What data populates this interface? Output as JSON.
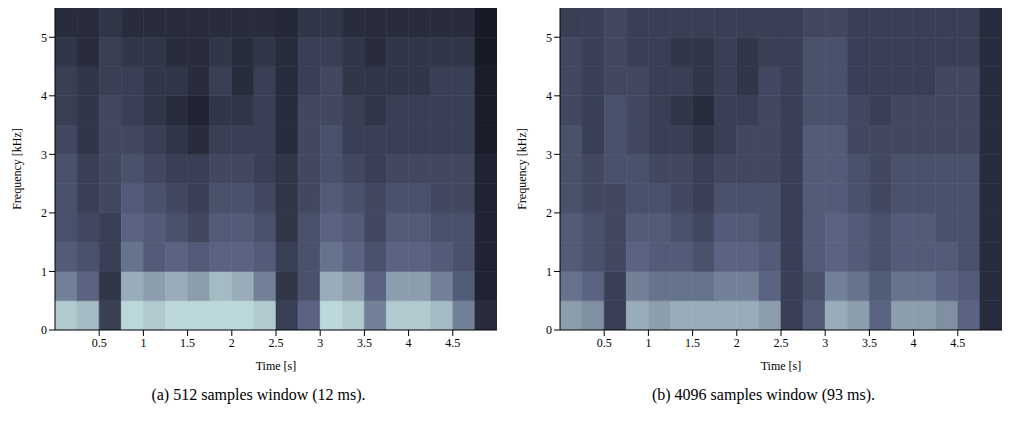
{
  "chart_data": [
    {
      "type": "heatmap",
      "caption": "(a) 512 samples window (12 ms).",
      "x_label": "Time [s]",
      "y_label": "Frequency [kHz]",
      "xlim": [
        0,
        5
      ],
      "xticks": [
        0.5,
        1,
        1.5,
        2,
        2.5,
        3,
        3.5,
        4,
        4.5
      ],
      "ylim": [
        0,
        5.5
      ],
      "yticks": [
        0,
        1,
        2,
        3,
        4,
        5
      ],
      "x_bins": [
        0,
        0.25,
        0.5,
        0.75,
        1,
        1.25,
        1.5,
        1.75,
        2,
        2.25,
        2.5,
        2.75,
        3,
        3.25,
        3.5,
        3.75,
        4,
        4.25,
        4.5,
        4.75,
        5
      ],
      "y_bins": [
        0,
        0.5,
        1,
        1.5,
        2,
        2.5,
        3,
        3.5,
        4,
        4.5,
        5,
        5.5
      ],
      "zlim": [
        0,
        1
      ],
      "colors": [
        "#07070f",
        "#5a6482",
        "#d6f5f0"
      ],
      "z": [
        [
          0.85,
          0.8,
          0.3,
          0.9,
          0.85,
          0.9,
          0.9,
          0.9,
          0.9,
          0.85,
          0.3,
          0.5,
          0.9,
          0.85,
          0.6,
          0.85,
          0.85,
          0.8,
          0.6,
          0.2
        ],
        [
          0.6,
          0.5,
          0.25,
          0.75,
          0.7,
          0.75,
          0.7,
          0.8,
          0.75,
          0.6,
          0.25,
          0.4,
          0.75,
          0.7,
          0.5,
          0.7,
          0.7,
          0.6,
          0.45,
          0.15
        ],
        [
          0.45,
          0.4,
          0.3,
          0.55,
          0.45,
          0.5,
          0.45,
          0.5,
          0.5,
          0.45,
          0.3,
          0.4,
          0.55,
          0.5,
          0.4,
          0.5,
          0.5,
          0.45,
          0.4,
          0.15
        ],
        [
          0.4,
          0.35,
          0.3,
          0.5,
          0.45,
          0.4,
          0.35,
          0.45,
          0.45,
          0.4,
          0.25,
          0.4,
          0.5,
          0.45,
          0.35,
          0.45,
          0.45,
          0.4,
          0.4,
          0.15
        ],
        [
          0.4,
          0.3,
          0.35,
          0.45,
          0.4,
          0.35,
          0.3,
          0.4,
          0.4,
          0.35,
          0.25,
          0.35,
          0.45,
          0.4,
          0.35,
          0.4,
          0.4,
          0.35,
          0.35,
          0.15
        ],
        [
          0.4,
          0.3,
          0.35,
          0.4,
          0.35,
          0.3,
          0.3,
          0.35,
          0.35,
          0.3,
          0.25,
          0.35,
          0.4,
          0.35,
          0.3,
          0.35,
          0.35,
          0.35,
          0.35,
          0.15
        ],
        [
          0.35,
          0.25,
          0.35,
          0.35,
          0.3,
          0.25,
          0.2,
          0.3,
          0.3,
          0.3,
          0.2,
          0.35,
          0.4,
          0.3,
          0.3,
          0.3,
          0.3,
          0.3,
          0.3,
          0.12
        ],
        [
          0.3,
          0.25,
          0.35,
          0.3,
          0.25,
          0.2,
          0.15,
          0.25,
          0.25,
          0.3,
          0.2,
          0.35,
          0.35,
          0.3,
          0.25,
          0.3,
          0.3,
          0.3,
          0.3,
          0.12
        ],
        [
          0.3,
          0.25,
          0.3,
          0.3,
          0.25,
          0.25,
          0.2,
          0.3,
          0.2,
          0.3,
          0.2,
          0.3,
          0.35,
          0.25,
          0.25,
          0.25,
          0.25,
          0.3,
          0.3,
          0.12
        ],
        [
          0.25,
          0.2,
          0.3,
          0.25,
          0.25,
          0.2,
          0.2,
          0.25,
          0.2,
          0.25,
          0.2,
          0.3,
          0.3,
          0.25,
          0.2,
          0.25,
          0.25,
          0.25,
          0.25,
          0.1
        ],
        [
          0.2,
          0.2,
          0.25,
          0.2,
          0.2,
          0.2,
          0.2,
          0.2,
          0.2,
          0.2,
          0.18,
          0.25,
          0.25,
          0.2,
          0.2,
          0.2,
          0.2,
          0.2,
          0.2,
          0.1
        ]
      ]
    },
    {
      "type": "heatmap",
      "caption": "(b) 4096 samples window (93 ms).",
      "x_label": "Time [s]",
      "y_label": "Frequency [kHz]",
      "xlim": [
        0,
        5
      ],
      "xticks": [
        0.5,
        1,
        1.5,
        2,
        2.5,
        3,
        3.5,
        4,
        4.5
      ],
      "ylim": [
        0,
        5.5
      ],
      "yticks": [
        0,
        1,
        2,
        3,
        4,
        5
      ],
      "x_bins": [
        0,
        0.25,
        0.5,
        0.75,
        1,
        1.25,
        1.5,
        1.75,
        2,
        2.25,
        2.5,
        2.75,
        3,
        3.25,
        3.5,
        3.75,
        4,
        4.25,
        4.5,
        4.75,
        5
      ],
      "y_bins": [
        0,
        0.5,
        1,
        1.5,
        2,
        2.5,
        3,
        3.5,
        4,
        4.5,
        5,
        5.5
      ],
      "zlim": [
        0,
        1
      ],
      "colors": [
        "#07070f",
        "#5a6482",
        "#d6f5f0"
      ],
      "z": [
        [
          0.7,
          0.65,
          0.3,
          0.75,
          0.7,
          0.75,
          0.75,
          0.75,
          0.75,
          0.7,
          0.3,
          0.45,
          0.75,
          0.7,
          0.5,
          0.7,
          0.7,
          0.65,
          0.5,
          0.2
        ],
        [
          0.55,
          0.5,
          0.3,
          0.6,
          0.55,
          0.55,
          0.55,
          0.6,
          0.6,
          0.5,
          0.3,
          0.4,
          0.6,
          0.55,
          0.45,
          0.55,
          0.55,
          0.5,
          0.45,
          0.2
        ],
        [
          0.45,
          0.4,
          0.35,
          0.5,
          0.45,
          0.45,
          0.4,
          0.5,
          0.5,
          0.45,
          0.3,
          0.45,
          0.5,
          0.45,
          0.4,
          0.45,
          0.45,
          0.45,
          0.4,
          0.2
        ],
        [
          0.45,
          0.4,
          0.35,
          0.45,
          0.45,
          0.4,
          0.35,
          0.45,
          0.45,
          0.4,
          0.3,
          0.45,
          0.5,
          0.45,
          0.4,
          0.45,
          0.45,
          0.4,
          0.4,
          0.2
        ],
        [
          0.4,
          0.35,
          0.35,
          0.4,
          0.4,
          0.35,
          0.3,
          0.4,
          0.4,
          0.4,
          0.3,
          0.45,
          0.45,
          0.4,
          0.35,
          0.4,
          0.4,
          0.4,
          0.4,
          0.2
        ],
        [
          0.4,
          0.35,
          0.4,
          0.4,
          0.35,
          0.35,
          0.3,
          0.35,
          0.35,
          0.35,
          0.3,
          0.45,
          0.45,
          0.4,
          0.35,
          0.4,
          0.4,
          0.4,
          0.4,
          0.2
        ],
        [
          0.4,
          0.3,
          0.4,
          0.35,
          0.3,
          0.3,
          0.25,
          0.3,
          0.35,
          0.35,
          0.3,
          0.45,
          0.45,
          0.35,
          0.35,
          0.35,
          0.35,
          0.35,
          0.35,
          0.2
        ],
        [
          0.35,
          0.3,
          0.4,
          0.35,
          0.3,
          0.25,
          0.2,
          0.3,
          0.3,
          0.35,
          0.3,
          0.4,
          0.4,
          0.35,
          0.3,
          0.35,
          0.35,
          0.35,
          0.35,
          0.2
        ],
        [
          0.35,
          0.3,
          0.35,
          0.35,
          0.3,
          0.3,
          0.25,
          0.3,
          0.25,
          0.35,
          0.3,
          0.4,
          0.4,
          0.3,
          0.3,
          0.3,
          0.3,
          0.35,
          0.35,
          0.2
        ],
        [
          0.35,
          0.3,
          0.35,
          0.3,
          0.3,
          0.25,
          0.25,
          0.3,
          0.25,
          0.3,
          0.3,
          0.4,
          0.4,
          0.3,
          0.3,
          0.3,
          0.3,
          0.3,
          0.3,
          0.2
        ],
        [
          0.3,
          0.3,
          0.35,
          0.3,
          0.3,
          0.3,
          0.3,
          0.3,
          0.3,
          0.3,
          0.3,
          0.35,
          0.35,
          0.3,
          0.3,
          0.3,
          0.3,
          0.3,
          0.3,
          0.2
        ]
      ]
    }
  ]
}
